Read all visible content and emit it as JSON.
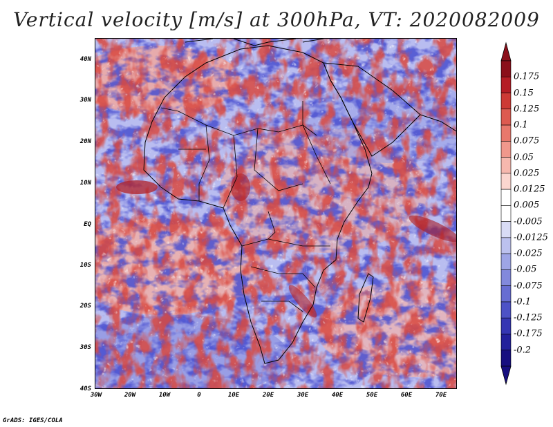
{
  "title": "Vertical velocity [m/s] at 300hPa, VT: 2020082009",
  "credit": "GrADS: IGES/COLA",
  "lat_labels": [
    "40N",
    "30N",
    "20N",
    "10N",
    "EQ",
    "10S",
    "20S",
    "30S",
    "40S"
  ],
  "lon_labels": [
    "30W",
    "20W",
    "10W",
    "0",
    "10E",
    "20E",
    "30E",
    "40E",
    "50E",
    "60E",
    "70E"
  ],
  "colorbar": {
    "labels": [
      "0.175",
      "0.15",
      "0.125",
      "0.1",
      "0.075",
      "0.05",
      "0.025",
      "0.0125",
      "0.005",
      "-0.005",
      "-0.0125",
      "-0.025",
      "-0.05",
      "-0.075",
      "-0.1",
      "-0.125",
      "-0.175",
      "-0.2"
    ],
    "colors": [
      "#8b0f1a",
      "#b51d25",
      "#cd3a35",
      "#dd5a50",
      "#e8786c",
      "#f0988c",
      "#f6b8ae",
      "#fbd6cf",
      "#ffffff",
      "#ffffff",
      "#d9dcf5",
      "#bcc1ee",
      "#9ea5e6",
      "#8289dc",
      "#676dd2",
      "#4d52c6",
      "#3536b3",
      "#23209b",
      "#170f80"
    ]
  },
  "chart_data": {
    "type": "heatmap",
    "title": "Vertical velocity [m/s] at 300hPa, VT: 2020082009",
    "x_range_deg": [
      -30,
      75
    ],
    "y_range_deg": [
      -40,
      45
    ],
    "x_ticks": [
      "30W",
      "20W",
      "10W",
      "0",
      "10E",
      "20E",
      "30E",
      "40E",
      "50E",
      "60E",
      "70E"
    ],
    "y_ticks": [
      "40N",
      "30N",
      "20N",
      "10N",
      "EQ",
      "10S",
      "20S",
      "30S",
      "40S"
    ],
    "levels": [
      -0.2,
      -0.175,
      -0.125,
      -0.1,
      -0.075,
      -0.05,
      -0.025,
      -0.0125,
      -0.005,
      0.005,
      0.0125,
      0.025,
      0.05,
      0.075,
      0.1,
      0.125,
      0.15,
      0.175
    ]
  }
}
